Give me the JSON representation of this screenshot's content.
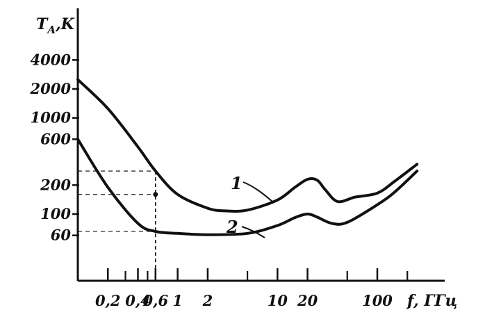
{
  "chart_data": {
    "type": "line",
    "xlabel": "f, ГГц",
    "ylabel": "T_A, K",
    "ylabel_main": "T",
    "ylabel_sub": "A",
    "ylabel_unit": ",K",
    "x_scale": "log",
    "y_scale": "log",
    "xlim": [
      0.1,
      300
    ],
    "ylim": [
      30,
      6000
    ],
    "grid": false,
    "legend": "none",
    "x_ticks": [
      {
        "value": 0.2,
        "label": "0,2"
      },
      {
        "value": 0.4,
        "label": "0,4"
      },
      {
        "value": 0.6,
        "label": "0,6"
      },
      {
        "value": 1,
        "label": "1"
      },
      {
        "value": 2,
        "label": "2"
      },
      {
        "value": 10,
        "label": "10"
      },
      {
        "value": 20,
        "label": "20"
      },
      {
        "value": 100,
        "label": "100"
      }
    ],
    "x_minor_ticks": [
      0.3,
      0.5,
      5,
      50,
      200
    ],
    "y_ticks": [
      {
        "value": 4000,
        "label": "4000"
      },
      {
        "value": 2000,
        "label": "2000"
      },
      {
        "value": 1000,
        "label": "1000"
      },
      {
        "value": 600,
        "label": "600"
      },
      {
        "value": 200,
        "label": "200"
      },
      {
        "value": 100,
        "label": "100"
      },
      {
        "value": 60,
        "label": "60"
      }
    ],
    "series": [
      {
        "name": "1",
        "x": [
          0.1,
          0.2,
          0.4,
          0.6,
          1,
          2,
          3,
          5,
          10,
          15,
          20,
          25,
          30,
          40,
          60,
          100,
          150,
          250
        ],
        "y": [
          2500,
          1250,
          500,
          280,
          160,
          115,
          108,
          110,
          140,
          190,
          230,
          225,
          180,
          135,
          150,
          165,
          220,
          330
        ]
      },
      {
        "name": "2",
        "x": [
          0.1,
          0.2,
          0.4,
          0.6,
          1,
          2,
          5,
          10,
          15,
          20,
          25,
          35,
          50,
          100,
          150,
          250
        ],
        "y": [
          600,
          190,
          80,
          66,
          63,
          61,
          63,
          76,
          92,
          100,
          93,
          80,
          82,
          125,
          170,
          280
        ]
      }
    ],
    "annotations": [
      {
        "label": "1"
      },
      {
        "label": "2"
      }
    ],
    "colors": {
      "ink": "#111111",
      "background": "#ffffff"
    }
  }
}
